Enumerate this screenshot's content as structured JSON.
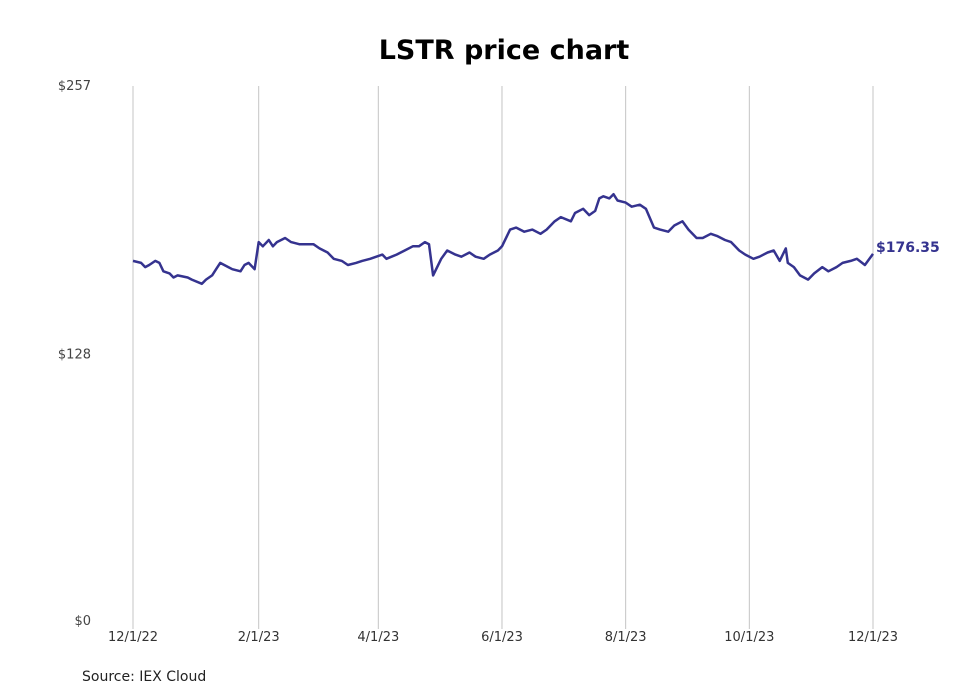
{
  "chart_data": {
    "type": "line",
    "title": "LSTR price chart",
    "xlabel": "",
    "ylabel": "",
    "ylim": [
      0,
      257
    ],
    "y_ticks": [
      {
        "value": 0,
        "label": "$0"
      },
      {
        "value": 128,
        "label": "$128"
      },
      {
        "value": 257,
        "label": "$257"
      }
    ],
    "x_ticks": [
      {
        "date": "2022-12-01",
        "label": "12/1/22"
      },
      {
        "date": "2023-02-01",
        "label": "2/1/23"
      },
      {
        "date": "2023-04-01",
        "label": "4/1/23"
      },
      {
        "date": "2023-06-01",
        "label": "6/1/23"
      },
      {
        "date": "2023-08-01",
        "label": "8/1/23"
      },
      {
        "date": "2023-10-01",
        "label": "10/1/23"
      },
      {
        "date": "2023-12-01",
        "label": "12/1/23"
      }
    ],
    "grid": "vertical",
    "line_color": "#35338f",
    "series": [
      {
        "points": [
          [
            "2022-12-01",
            173
          ],
          [
            "2022-12-05",
            172
          ],
          [
            "2022-12-07",
            170
          ],
          [
            "2022-12-09",
            171
          ],
          [
            "2022-12-12",
            173
          ],
          [
            "2022-12-14",
            172
          ],
          [
            "2022-12-16",
            168
          ],
          [
            "2022-12-19",
            167
          ],
          [
            "2022-12-21",
            165
          ],
          [
            "2022-12-23",
            166
          ],
          [
            "2022-12-28",
            165
          ],
          [
            "2022-12-30",
            164
          ],
          [
            "2023-01-04",
            162
          ],
          [
            "2023-01-06",
            164
          ],
          [
            "2023-01-09",
            166
          ],
          [
            "2023-01-11",
            169
          ],
          [
            "2023-01-13",
            172
          ],
          [
            "2023-01-17",
            170
          ],
          [
            "2023-01-19",
            169
          ],
          [
            "2023-01-23",
            168
          ],
          [
            "2023-01-25",
            171
          ],
          [
            "2023-01-27",
            172
          ],
          [
            "2023-01-30",
            169
          ],
          [
            "2023-02-01",
            182
          ],
          [
            "2023-02-03",
            180
          ],
          [
            "2023-02-06",
            183
          ],
          [
            "2023-02-08",
            180
          ],
          [
            "2023-02-10",
            182
          ],
          [
            "2023-02-14",
            184
          ],
          [
            "2023-02-17",
            182
          ],
          [
            "2023-02-21",
            181
          ],
          [
            "2023-02-24",
            181
          ],
          [
            "2023-02-28",
            181
          ],
          [
            "2023-03-03",
            179
          ],
          [
            "2023-03-07",
            177
          ],
          [
            "2023-03-10",
            174
          ],
          [
            "2023-03-14",
            173
          ],
          [
            "2023-03-17",
            171
          ],
          [
            "2023-03-21",
            172
          ],
          [
            "2023-03-24",
            173
          ],
          [
            "2023-03-28",
            174
          ],
          [
            "2023-03-31",
            175
          ],
          [
            "2023-04-03",
            176
          ],
          [
            "2023-04-05",
            174
          ],
          [
            "2023-04-10",
            176
          ],
          [
            "2023-04-14",
            178
          ],
          [
            "2023-04-18",
            180
          ],
          [
            "2023-04-21",
            180
          ],
          [
            "2023-04-24",
            182
          ],
          [
            "2023-04-26",
            181
          ],
          [
            "2023-04-28",
            166
          ],
          [
            "2023-05-02",
            174
          ],
          [
            "2023-05-05",
            178
          ],
          [
            "2023-05-09",
            176
          ],
          [
            "2023-05-12",
            175
          ],
          [
            "2023-05-16",
            177
          ],
          [
            "2023-05-19",
            175
          ],
          [
            "2023-05-23",
            174
          ],
          [
            "2023-05-26",
            176
          ],
          [
            "2023-05-30",
            178
          ],
          [
            "2023-06-01",
            180
          ],
          [
            "2023-06-05",
            188
          ],
          [
            "2023-06-08",
            189
          ],
          [
            "2023-06-12",
            187
          ],
          [
            "2023-06-16",
            188
          ],
          [
            "2023-06-20",
            186
          ],
          [
            "2023-06-23",
            188
          ],
          [
            "2023-06-27",
            192
          ],
          [
            "2023-06-30",
            194
          ],
          [
            "2023-07-05",
            192
          ],
          [
            "2023-07-07",
            196
          ],
          [
            "2023-07-11",
            198
          ],
          [
            "2023-07-14",
            195
          ],
          [
            "2023-07-17",
            197
          ],
          [
            "2023-07-19",
            203
          ],
          [
            "2023-07-21",
            204
          ],
          [
            "2023-07-24",
            203
          ],
          [
            "2023-07-26",
            205
          ],
          [
            "2023-07-28",
            202
          ],
          [
            "2023-08-01",
            201
          ],
          [
            "2023-08-04",
            199
          ],
          [
            "2023-08-08",
            200
          ],
          [
            "2023-08-11",
            198
          ],
          [
            "2023-08-15",
            189
          ],
          [
            "2023-08-18",
            188
          ],
          [
            "2023-08-22",
            187
          ],
          [
            "2023-08-25",
            190
          ],
          [
            "2023-08-29",
            192
          ],
          [
            "2023-09-01",
            188
          ],
          [
            "2023-09-05",
            184
          ],
          [
            "2023-09-08",
            184
          ],
          [
            "2023-09-12",
            186
          ],
          [
            "2023-09-15",
            185
          ],
          [
            "2023-09-19",
            183
          ],
          [
            "2023-09-22",
            182
          ],
          [
            "2023-09-26",
            178
          ],
          [
            "2023-09-29",
            176
          ],
          [
            "2023-10-03",
            174
          ],
          [
            "2023-10-06",
            175
          ],
          [
            "2023-10-10",
            177
          ],
          [
            "2023-10-13",
            178
          ],
          [
            "2023-10-16",
            173
          ],
          [
            "2023-10-19",
            179
          ],
          [
            "2023-10-20",
            172
          ],
          [
            "2023-10-23",
            170
          ],
          [
            "2023-10-26",
            166
          ],
          [
            "2023-10-30",
            164
          ],
          [
            "2023-11-02",
            167
          ],
          [
            "2023-11-06",
            170
          ],
          [
            "2023-11-09",
            168
          ],
          [
            "2023-11-13",
            170
          ],
          [
            "2023-11-16",
            172
          ],
          [
            "2023-11-20",
            173
          ],
          [
            "2023-11-23",
            174
          ],
          [
            "2023-11-27",
            171
          ],
          [
            "2023-12-01",
            176.35
          ]
        ]
      }
    ],
    "end_label": "$176.35"
  },
  "source": "Source: IEX Cloud"
}
